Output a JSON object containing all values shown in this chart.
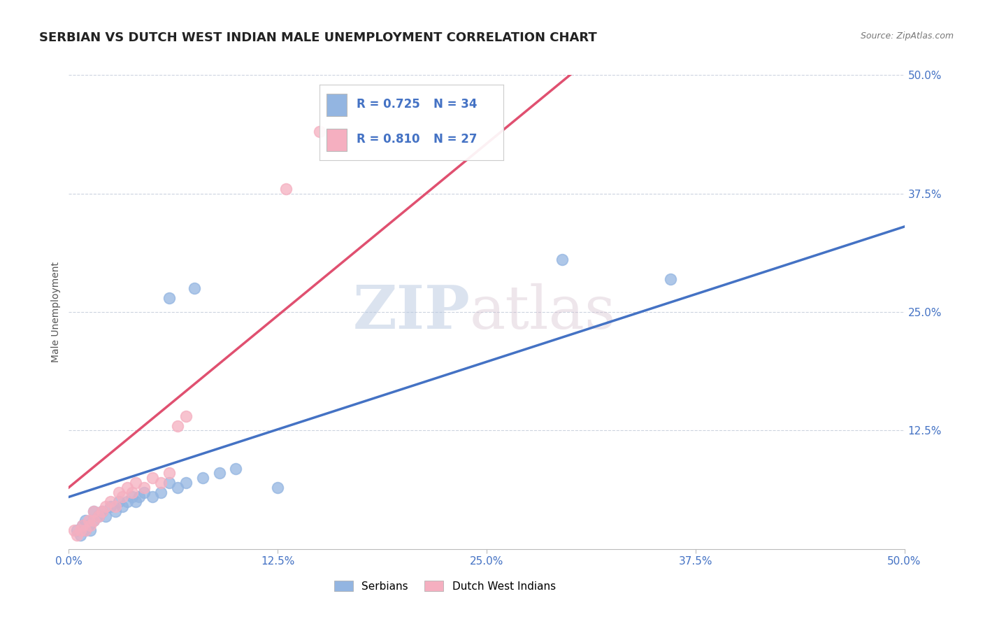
{
  "title": "SERBIAN VS DUTCH WEST INDIAN MALE UNEMPLOYMENT CORRELATION CHART",
  "source_text": "Source: ZipAtlas.com",
  "ylabel": "Male Unemployment",
  "xlim": [
    0.0,
    0.5
  ],
  "ylim": [
    0.0,
    0.5
  ],
  "xtick_vals": [
    0.0,
    0.125,
    0.25,
    0.375,
    0.5
  ],
  "xtick_labels": [
    "0.0%",
    "12.5%",
    "25.0%",
    "37.5%",
    "50.0%"
  ],
  "ytick_vals": [
    0.125,
    0.25,
    0.375,
    0.5
  ],
  "ytick_labels": [
    "12.5%",
    "25.0%",
    "37.5%",
    "50.0%"
  ],
  "watermark_zip": "ZIP",
  "watermark_atlas": "atlas",
  "serbian_color": "#93b5e1",
  "dutch_color": "#f5afc0",
  "serbian_line_color": "#4472c4",
  "dutch_line_color": "#e05070",
  "R_serbian": 0.725,
  "N_serbian": 34,
  "R_dutch": 0.81,
  "N_dutch": 27,
  "legend_label_serbian": "Serbians",
  "legend_label_dutch": "Dutch West Indians",
  "title_fontsize": 13,
  "axis_label_fontsize": 10,
  "tick_fontsize": 11,
  "background_color": "#ffffff",
  "serbian_line_x0": 0.0,
  "serbian_line_y0": 0.055,
  "serbian_line_x1": 0.5,
  "serbian_line_y1": 0.34,
  "dutch_line_x0": 0.0,
  "dutch_line_y0": 0.065,
  "dutch_line_x1": 0.3,
  "dutch_line_y1": 0.5,
  "serbian_points": [
    [
      0.005,
      0.02
    ],
    [
      0.007,
      0.015
    ],
    [
      0.008,
      0.025
    ],
    [
      0.01,
      0.02
    ],
    [
      0.01,
      0.03
    ],
    [
      0.012,
      0.025
    ],
    [
      0.013,
      0.02
    ],
    [
      0.015,
      0.03
    ],
    [
      0.015,
      0.04
    ],
    [
      0.018,
      0.035
    ],
    [
      0.02,
      0.04
    ],
    [
      0.022,
      0.035
    ],
    [
      0.025,
      0.045
    ],
    [
      0.028,
      0.04
    ],
    [
      0.03,
      0.05
    ],
    [
      0.032,
      0.045
    ],
    [
      0.035,
      0.05
    ],
    [
      0.038,
      0.055
    ],
    [
      0.04,
      0.05
    ],
    [
      0.042,
      0.055
    ],
    [
      0.045,
      0.06
    ],
    [
      0.05,
      0.055
    ],
    [
      0.055,
      0.06
    ],
    [
      0.06,
      0.07
    ],
    [
      0.065,
      0.065
    ],
    [
      0.07,
      0.07
    ],
    [
      0.08,
      0.075
    ],
    [
      0.09,
      0.08
    ],
    [
      0.1,
      0.085
    ],
    [
      0.06,
      0.265
    ],
    [
      0.075,
      0.275
    ],
    [
      0.125,
      0.065
    ],
    [
      0.295,
      0.305
    ],
    [
      0.36,
      0.285
    ]
  ],
  "dutch_points": [
    [
      0.003,
      0.02
    ],
    [
      0.005,
      0.015
    ],
    [
      0.007,
      0.02
    ],
    [
      0.008,
      0.025
    ],
    [
      0.01,
      0.02
    ],
    [
      0.012,
      0.03
    ],
    [
      0.013,
      0.025
    ],
    [
      0.015,
      0.03
    ],
    [
      0.015,
      0.04
    ],
    [
      0.018,
      0.035
    ],
    [
      0.02,
      0.04
    ],
    [
      0.022,
      0.045
    ],
    [
      0.025,
      0.05
    ],
    [
      0.028,
      0.045
    ],
    [
      0.03,
      0.06
    ],
    [
      0.032,
      0.055
    ],
    [
      0.035,
      0.065
    ],
    [
      0.038,
      0.06
    ],
    [
      0.04,
      0.07
    ],
    [
      0.045,
      0.065
    ],
    [
      0.05,
      0.075
    ],
    [
      0.055,
      0.07
    ],
    [
      0.06,
      0.08
    ],
    [
      0.065,
      0.13
    ],
    [
      0.07,
      0.14
    ],
    [
      0.13,
      0.38
    ],
    [
      0.15,
      0.44
    ]
  ]
}
